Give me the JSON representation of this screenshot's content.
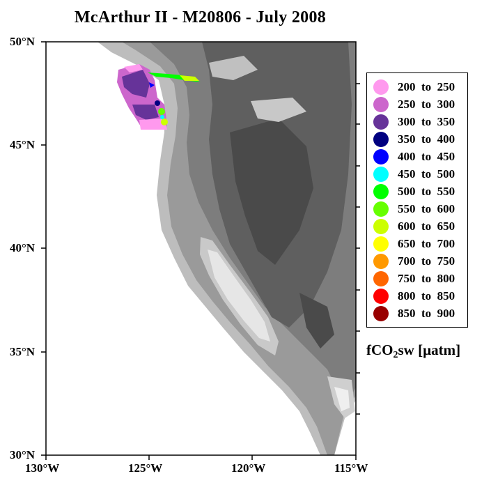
{
  "title": "McArthur II - M20806 - July 2008",
  "map": {
    "lon_range": [
      -130,
      -115
    ],
    "lat_range": [
      30,
      50
    ],
    "x_ticks": [
      "130°W",
      "125°W",
      "120°W",
      "115°W"
    ],
    "y_ticks": [
      "50°N",
      "45°N",
      "40°N",
      "35°N",
      "30°N"
    ]
  },
  "legend": {
    "items": [
      {
        "label": "200  to  250",
        "color": "#ff99ee"
      },
      {
        "label": "250  to  300",
        "color": "#cc66cc"
      },
      {
        "label": "300  to  350",
        "color": "#663399"
      },
      {
        "label": "350  to  400",
        "color": "#000080"
      },
      {
        "label": "400  to  450",
        "color": "#0000ff"
      },
      {
        "label": "450  to  500",
        "color": "#00ffff"
      },
      {
        "label": "500  to  550",
        "color": "#00ff00"
      },
      {
        "label": "550  to  600",
        "color": "#66ff00"
      },
      {
        "label": "600  to  650",
        "color": "#ccff00"
      },
      {
        "label": "650  to  700",
        "color": "#ffff00"
      },
      {
        "label": "700  to  750",
        "color": "#ff9900"
      },
      {
        "label": "750  to  800",
        "color": "#ff6600"
      },
      {
        "label": "800  to  850",
        "color": "#ff0000"
      },
      {
        "label": "850  to  900",
        "color": "#990000"
      }
    ],
    "units_main": "fCO",
    "units_sub": "2",
    "units_rest": "sw [µatm]"
  }
}
